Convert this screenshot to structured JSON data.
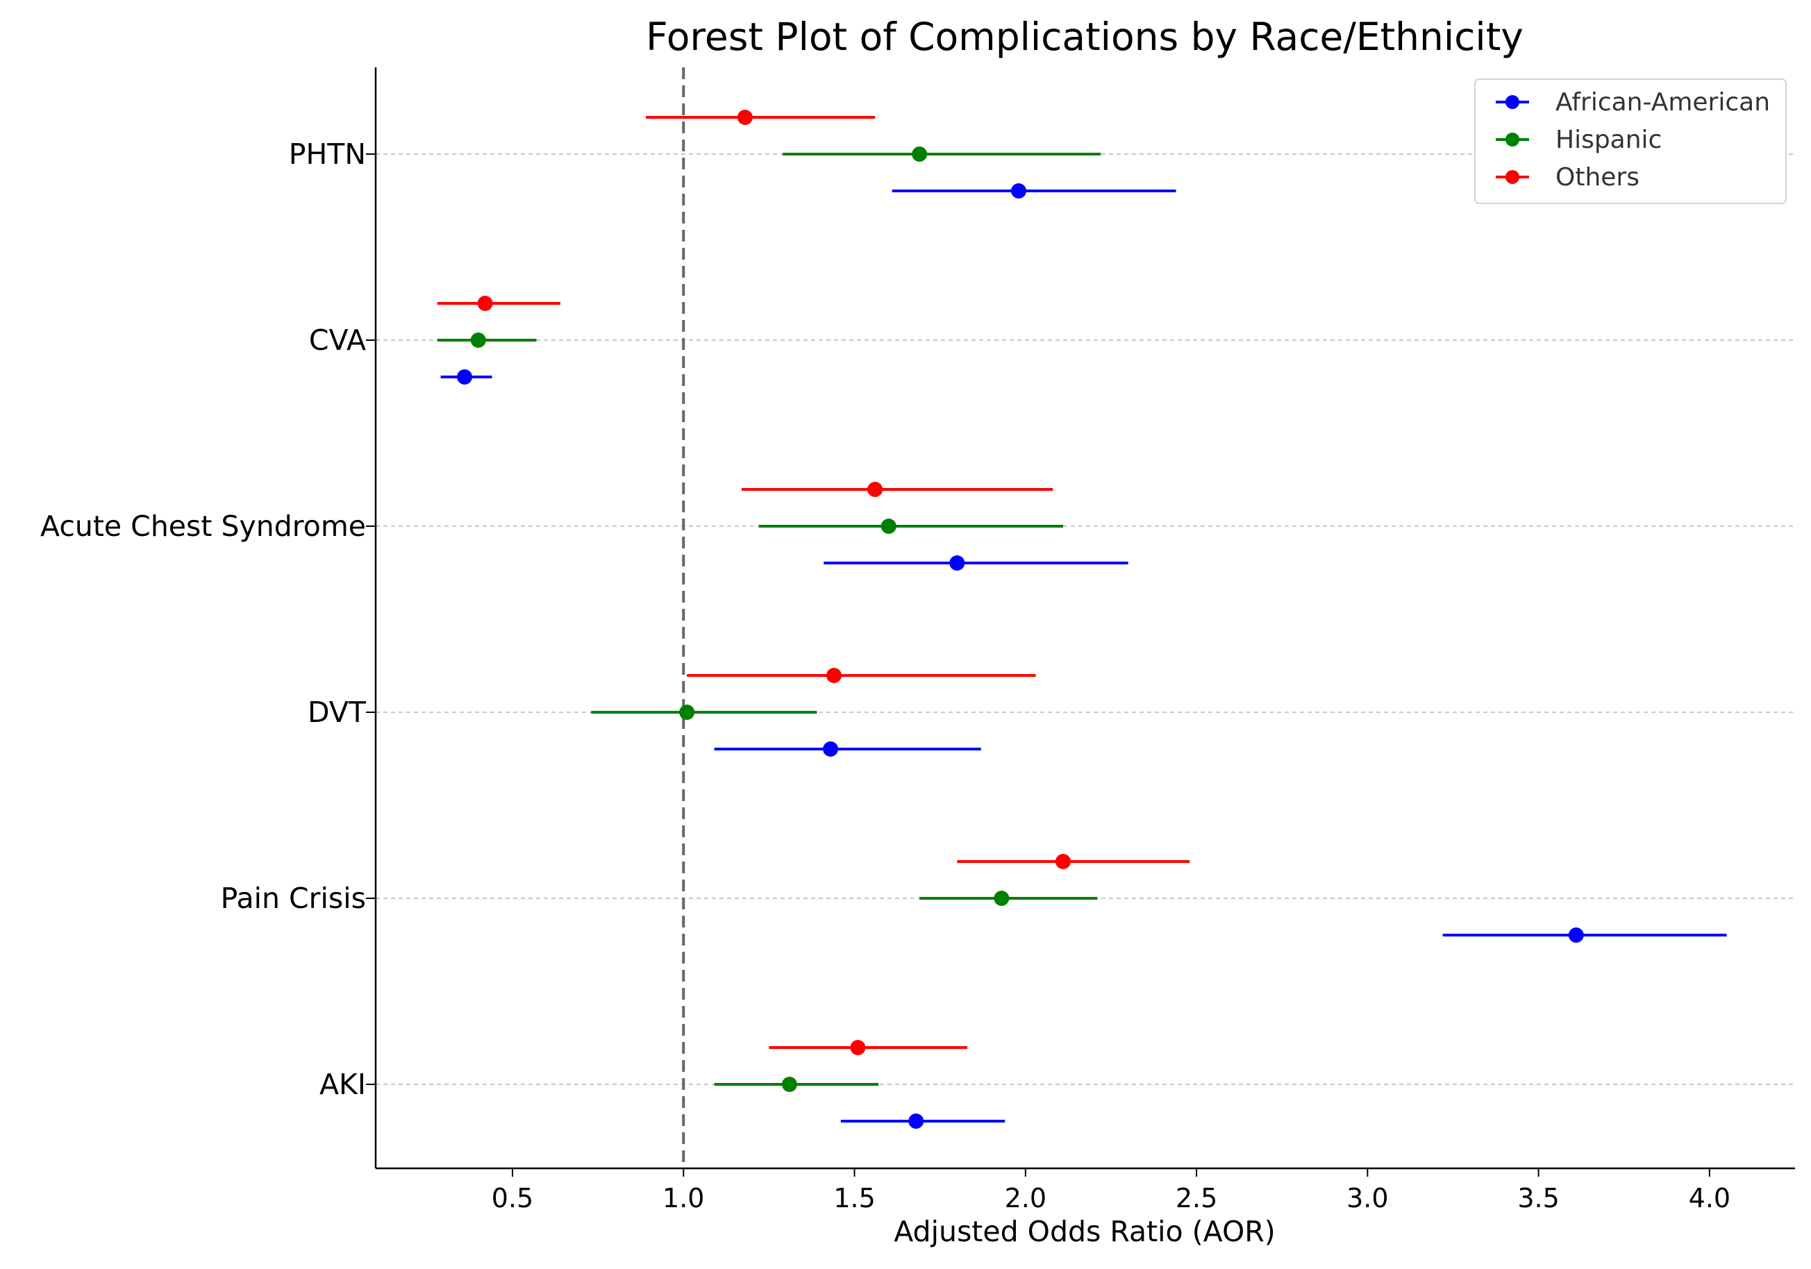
{
  "chart_data": {
    "type": "forest",
    "title": "Forest Plot of Complications by Race/Ethnicity",
    "xlabel": "Adjusted Odds Ratio (AOR)",
    "ylabel": "",
    "xlim": [
      0.1,
      4.25
    ],
    "xticks": [
      0.5,
      1.0,
      1.5,
      2.0,
      2.5,
      3.0,
      3.5,
      4.0
    ],
    "xtick_labels": [
      "0.5",
      "1.0",
      "1.5",
      "2.0",
      "2.5",
      "3.0",
      "3.5",
      "4.0"
    ],
    "reference_line": 1.0,
    "grid": "horizontal dashed at categories",
    "legend_position": "top-right",
    "categories": [
      "PHTN",
      "CVA",
      "Acute Chest Syndrome",
      "DVT",
      "Pain Crisis",
      "AKI"
    ],
    "series": [
      {
        "name": "African-American",
        "color": "#0000ff",
        "points": [
          {
            "aor": 1.98,
            "lower": 1.61,
            "upper": 2.44
          },
          {
            "aor": 0.36,
            "lower": 0.29,
            "upper": 0.44
          },
          {
            "aor": 1.8,
            "lower": 1.41,
            "upper": 2.3
          },
          {
            "aor": 1.43,
            "lower": 1.09,
            "upper": 1.87
          },
          {
            "aor": 3.61,
            "lower": 3.22,
            "upper": 4.05
          },
          {
            "aor": 1.68,
            "lower": 1.46,
            "upper": 1.94
          }
        ]
      },
      {
        "name": "Hispanic",
        "color": "#008000",
        "points": [
          {
            "aor": 1.69,
            "lower": 1.29,
            "upper": 2.22
          },
          {
            "aor": 0.4,
            "lower": 0.28,
            "upper": 0.57
          },
          {
            "aor": 1.6,
            "lower": 1.22,
            "upper": 2.11
          },
          {
            "aor": 1.01,
            "lower": 0.73,
            "upper": 1.39
          },
          {
            "aor": 1.93,
            "lower": 1.69,
            "upper": 2.21
          },
          {
            "aor": 1.31,
            "lower": 1.09,
            "upper": 1.57
          }
        ]
      },
      {
        "name": "Others",
        "color": "#ff0000",
        "points": [
          {
            "aor": 1.18,
            "lower": 0.89,
            "upper": 1.56
          },
          {
            "aor": 0.42,
            "lower": 0.28,
            "upper": 0.64
          },
          {
            "aor": 1.56,
            "lower": 1.17,
            "upper": 2.08
          },
          {
            "aor": 1.44,
            "lower": 1.01,
            "upper": 2.03
          },
          {
            "aor": 2.11,
            "lower": 1.8,
            "upper": 2.48
          },
          {
            "aor": 1.51,
            "lower": 1.25,
            "upper": 1.83
          }
        ]
      }
    ]
  }
}
